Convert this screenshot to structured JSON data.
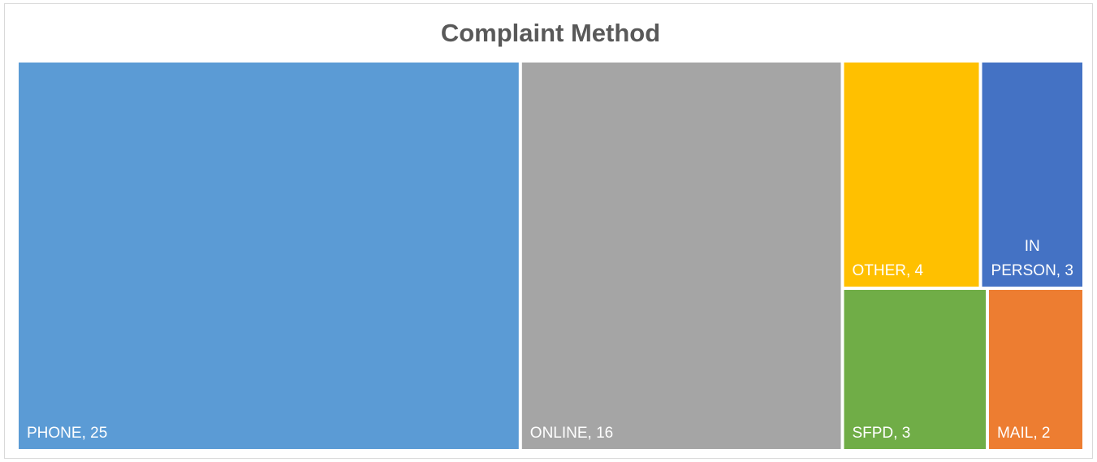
{
  "chart_data": {
    "type": "treemap",
    "title": "Complaint Method",
    "values": [
      25,
      16,
      4,
      3,
      3,
      2
    ],
    "value_labels": [
      "PHONE, 25",
      "ONLINE, 16",
      "OTHER, 4",
      "IN PERSON, 3",
      "SFPD, 3",
      "MAIL, 2"
    ],
    "colors": [
      "#5b9bd5",
      "#a5a5a5",
      "#ffc000",
      "#4472c4",
      "#70ad47",
      "#ed7d31"
    ]
  }
}
